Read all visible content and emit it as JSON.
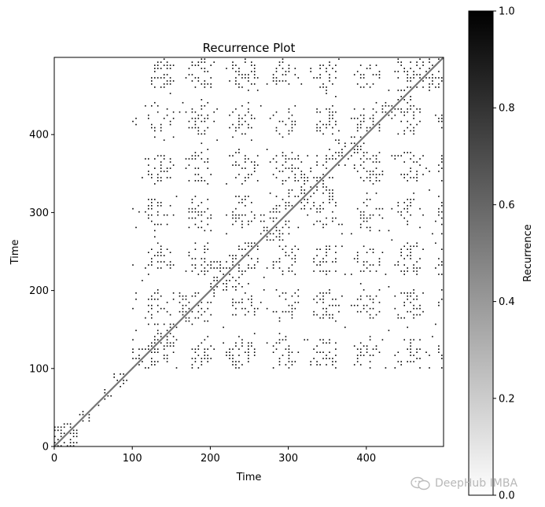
{
  "chart_data": {
    "type": "heatmap",
    "title": "Recurrence Plot",
    "xlabel": "Time",
    "ylabel": "Time",
    "xlim": [
      0,
      499
    ],
    "ylim": [
      0,
      499
    ],
    "x_ticks": [
      0,
      100,
      200,
      300,
      400
    ],
    "y_ticks": [
      0,
      100,
      200,
      300,
      400
    ],
    "colormap": "binary",
    "colorbar": {
      "label": "Recurrence",
      "range": [
        0.0,
        1.0
      ],
      "ticks": [
        "0.0",
        "0.2",
        "0.4",
        "0.6",
        "0.8",
        "1.0"
      ]
    },
    "recurrence_blocks": [
      [
        0,
        30
      ],
      [
        30,
        45
      ],
      [
        45,
        60
      ],
      [
        60,
        75
      ],
      [
        75,
        95
      ],
      [
        95,
        100
      ],
      [
        100,
        125
      ],
      [
        125,
        160
      ],
      [
        160,
        200
      ],
      [
        200,
        240
      ],
      [
        240,
        262
      ],
      [
        262,
        300
      ],
      [
        300,
        360
      ],
      [
        360,
        400
      ],
      [
        400,
        420
      ],
      [
        420,
        440
      ],
      [
        440,
        460
      ],
      [
        460,
        499
      ]
    ],
    "recurrence_regions": [
      [
        100,
        499,
        100,
        300
      ],
      [
        100,
        300,
        100,
        499
      ],
      [
        300,
        499,
        300,
        499
      ]
    ],
    "colors": {
      "recurrence": "#000000",
      "background": "#ffffff",
      "diagonal": "#777777"
    }
  },
  "watermark": {
    "text": "DeepHub IMBA",
    "icon": "wechat-icon"
  }
}
